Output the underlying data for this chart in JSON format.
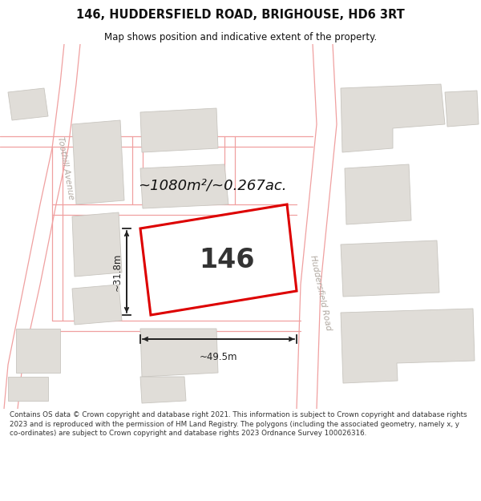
{
  "title": "146, HUDDERSFIELD ROAD, BRIGHOUSE, HD6 3RT",
  "subtitle": "Map shows position and indicative extent of the property.",
  "footer": "Contains OS data © Crown copyright and database right 2021. This information is subject to Crown copyright and database rights 2023 and is reproduced with the permission of HM Land Registry. The polygons (including the associated geometry, namely x, y co-ordinates) are subject to Crown copyright and database rights 2023 Ordnance Survey 100026316.",
  "area_text": "~1080m²/~0.267ac.",
  "property_label": "146",
  "width_label": "~49.5m",
  "height_label": "~31.8m",
  "bg_color": "#ffffff",
  "building_fill": "#e0ddd8",
  "building_edge": "#c8c5bf",
  "highlight_edge": "#dd0000",
  "road_line_color": "#f0a0a0",
  "road_outline_color": "#e8b8b8",
  "text_color": "#111111",
  "meas_color": "#222222",
  "road_label_color": "#b0a8a0",
  "footer_color": "#333333",
  "road_label": "Huddersfield Road",
  "road_label2": "Toothill Avenue"
}
